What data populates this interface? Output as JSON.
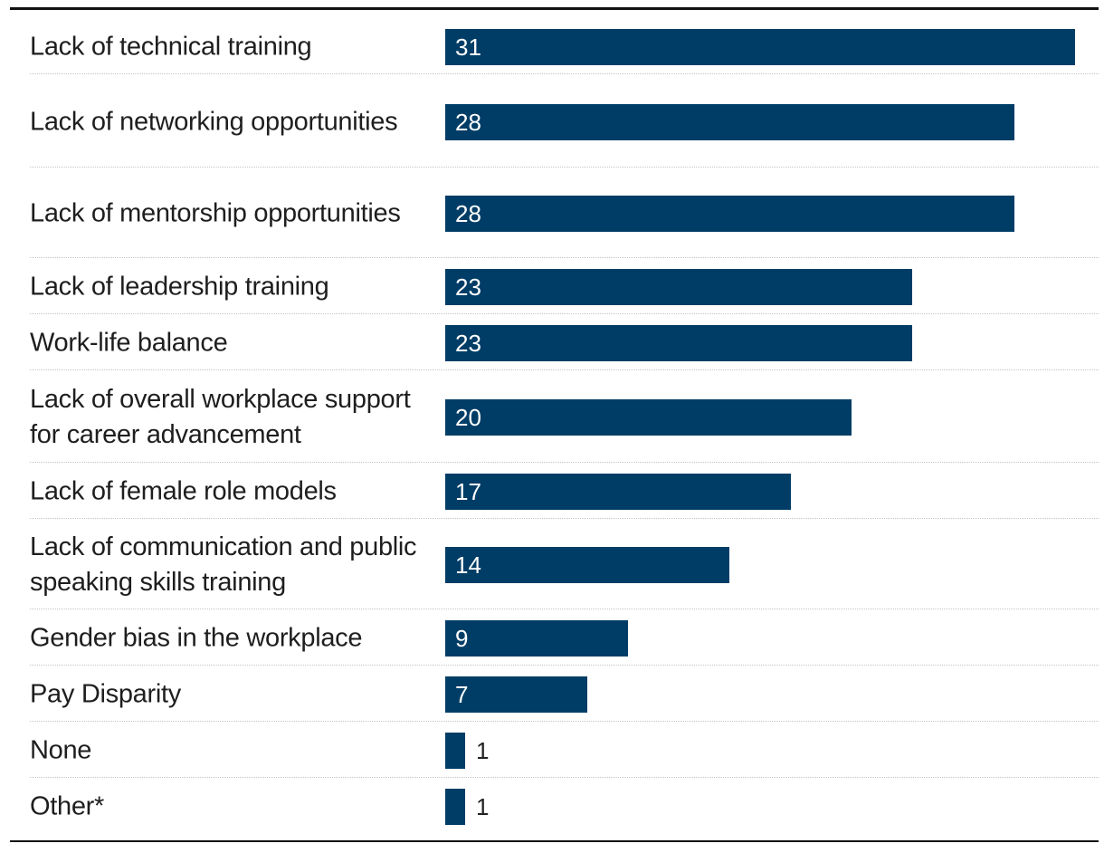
{
  "chart_data": {
    "type": "bar",
    "orientation": "horizontal",
    "categories": [
      "Lack of technical training",
      "Lack of networking opportunities",
      "Lack of mentorship opportunities",
      "Lack of leadership training",
      "Work-life balance",
      "Lack of overall workplace support for career advancement",
      "Lack of female role models",
      "Lack of communication and public speaking skills training",
      "Gender bias in the workplace",
      "Pay Disparity",
      "None",
      "Other*"
    ],
    "values": [
      31,
      28,
      28,
      23,
      23,
      20,
      17,
      14,
      9,
      7,
      1,
      1
    ],
    "xlim": [
      0,
      31
    ],
    "grid": false,
    "legend": "none",
    "bar_color": "#003d66",
    "title": "",
    "xlabel": "",
    "ylabel": ""
  }
}
